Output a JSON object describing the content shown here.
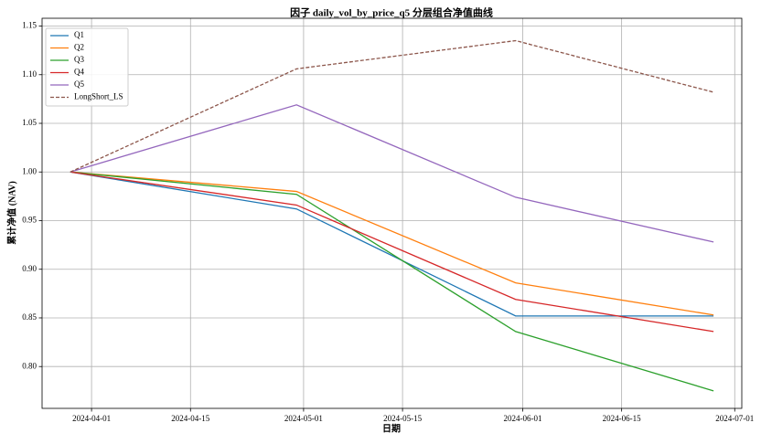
{
  "chart_data": {
    "type": "line",
    "title": "因子 daily_vol_by_price_q5 分层组合净值曲线",
    "x_label": "日期",
    "y_label": "累计净值 (NAV)",
    "x": [
      "2024-03-29",
      "2024-04-30",
      "2024-05-31",
      "2024-06-28"
    ],
    "series": [
      {
        "name": "Q1",
        "color": "#1f77b4",
        "linestyle": "solid",
        "values": [
          1.0,
          0.962,
          0.852,
          0.852
        ]
      },
      {
        "name": "Q2",
        "color": "#ff7f0e",
        "linestyle": "solid",
        "values": [
          1.0,
          0.98,
          0.886,
          0.853
        ]
      },
      {
        "name": "Q3",
        "color": "#2ca02c",
        "linestyle": "solid",
        "values": [
          1.0,
          0.977,
          0.836,
          0.775
        ]
      },
      {
        "name": "Q4",
        "color": "#d62728",
        "linestyle": "solid",
        "values": [
          1.0,
          0.966,
          0.869,
          0.836
        ]
      },
      {
        "name": "Q5",
        "color": "#9467bd",
        "linestyle": "solid",
        "values": [
          1.0,
          1.069,
          0.974,
          0.928
        ]
      },
      {
        "name": "LongShort_LS",
        "color": "#8c564b",
        "linestyle": "dashed",
        "values": [
          1.0,
          1.106,
          1.135,
          1.082
        ]
      }
    ],
    "xlim": [
      "2024-03-25",
      "2024-07-02"
    ],
    "xticks": [
      "2024-04-01",
      "2024-04-15",
      "2024-05-01",
      "2024-05-15",
      "2024-06-01",
      "2024-06-15",
      "2024-07-01"
    ],
    "ylim": [
      0.757,
      1.158
    ],
    "yticks": [
      {
        "value": 0.8,
        "label": "0.80"
      },
      {
        "value": 0.85,
        "label": "0.85"
      },
      {
        "value": 0.9,
        "label": "0.90"
      },
      {
        "value": 0.95,
        "label": "0.95"
      },
      {
        "value": 1.0,
        "label": "1.00"
      },
      {
        "value": 1.05,
        "label": "1.05"
      },
      {
        "value": 1.1,
        "label": "1.10"
      },
      {
        "value": 1.15,
        "label": "1.15"
      }
    ],
    "grid": true,
    "legend": "upper-left"
  }
}
